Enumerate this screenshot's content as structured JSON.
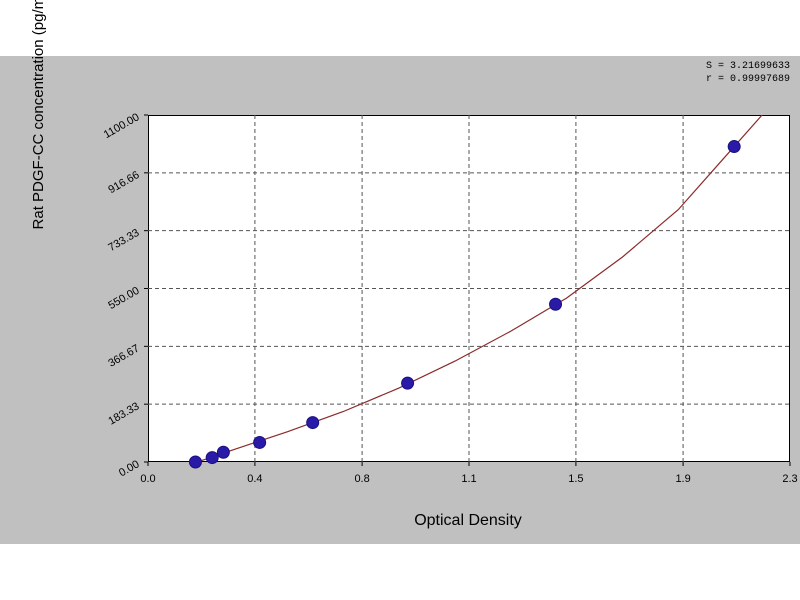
{
  "chart_data": {
    "type": "scatter",
    "xlabel": "Optical Density",
    "ylabel": "Rat PDGF-CC concentration (pg/ml)",
    "xlim": [
      0,
      2.3
    ],
    "ylim": [
      0,
      1100
    ],
    "x_ticks": [
      "0.0",
      "0.4",
      "0.8",
      "1.1",
      "1.5",
      "1.9",
      "2.3"
    ],
    "x_tick_values": [
      0,
      0.383,
      0.767,
      1.15,
      1.533,
      1.917,
      2.3
    ],
    "y_ticks": [
      "0.00",
      "183.33",
      "366.67",
      "550.00",
      "733.33",
      "916.66",
      "1100.00"
    ],
    "y_tick_values": [
      0,
      183.33,
      366.67,
      550,
      733.33,
      916.66,
      1100
    ],
    "grid": true,
    "series": [
      {
        "values": [
          {
            "x": 0.17,
            "y": 0
          },
          {
            "x": 0.23,
            "y": 14
          },
          {
            "x": 0.27,
            "y": 31
          },
          {
            "x": 0.4,
            "y": 62
          },
          {
            "x": 0.59,
            "y": 125
          },
          {
            "x": 0.93,
            "y": 250
          },
          {
            "x": 1.46,
            "y": 500
          },
          {
            "x": 2.1,
            "y": 1000
          }
        ],
        "color": "#2a1aa8"
      }
    ],
    "fit_curve": {
      "color": "#8b2a2a",
      "points": [
        {
          "x": 0.15,
          "y": -8
        },
        {
          "x": 0.3,
          "y": 37
        },
        {
          "x": 0.5,
          "y": 96
        },
        {
          "x": 0.7,
          "y": 160
        },
        {
          "x": 0.9,
          "y": 235
        },
        {
          "x": 1.1,
          "y": 320
        },
        {
          "x": 1.3,
          "y": 415
        },
        {
          "x": 1.5,
          "y": 520
        },
        {
          "x": 1.7,
          "y": 650
        },
        {
          "x": 1.9,
          "y": 800
        },
        {
          "x": 2.05,
          "y": 950
        },
        {
          "x": 2.2,
          "y": 1100
        }
      ]
    },
    "annotations": [
      "S = 3.21699633",
      "r = 0.99997689"
    ]
  }
}
